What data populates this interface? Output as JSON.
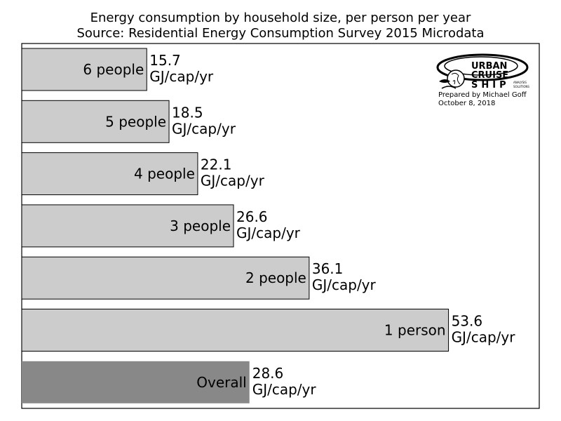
{
  "chart_data": {
    "type": "bar",
    "orientation": "horizontal",
    "title": "Energy consumption by household size, per person per year",
    "subtitle": "Source: Residential Energy Consumption Survey 2015 Microdata",
    "categories": [
      "6 people",
      "5 people",
      "4 people",
      "3 people",
      "2 people",
      "1 person",
      "Overall"
    ],
    "values": [
      15.7,
      18.5,
      22.1,
      26.6,
      36.1,
      53.6,
      28.6
    ],
    "value_labels": [
      "15.7",
      "18.5",
      "22.1",
      "26.6",
      "36.1",
      "53.6",
      "28.6"
    ],
    "unit": "GJ/cap/yr",
    "xlim": [
      0,
      65
    ],
    "colors": {
      "bar": "#cccccc",
      "overall_bar": "#888888",
      "edge": "#000000"
    },
    "grid": false
  },
  "credit": {
    "author": "Prepared by Michael Goff",
    "date": "October 8, 2018"
  },
  "logo": {
    "line1": "URBAN",
    "line2": "CRUISE",
    "line3": "SHIP",
    "tagline1": "ANALYSIS",
    "tagline2": "SOLUTIONS"
  }
}
